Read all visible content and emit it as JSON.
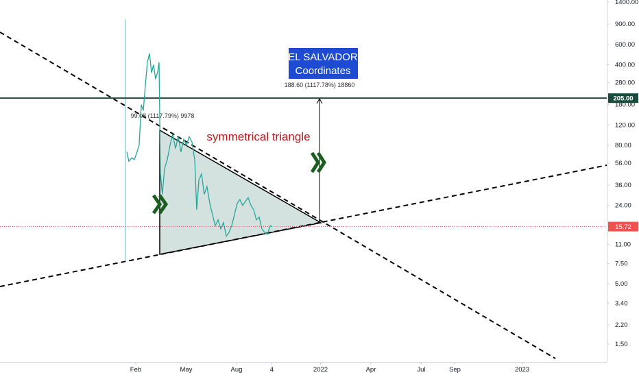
{
  "chart_data": {
    "type": "line",
    "log_y": true,
    "color": "#26a69a",
    "x": [
      0.47,
      0.59,
      0.76,
      0.92,
      1.08,
      1.2,
      1.33,
      1.45,
      1.57,
      1.69,
      1.82,
      1.94,
      2.06,
      2.18,
      2.31,
      2.39,
      2.47,
      2.59,
      2.71,
      2.88,
      3.04,
      3.2,
      3.37,
      3.53,
      3.69,
      3.86,
      4.02,
      4.18,
      4.35,
      4.51,
      4.63,
      4.76,
      4.92,
      5.08,
      5.24,
      5.41,
      5.57,
      5.73,
      5.9,
      6.06,
      6.22,
      6.39,
      6.55,
      6.71,
      6.88,
      7.04,
      7.2,
      7.37,
      7.53,
      7.69,
      7.86,
      8.02,
      8.18,
      8.35,
      8.51,
      8.67,
      8.84,
      9.0,
      9.12
    ],
    "values": [
      70,
      58,
      62,
      60,
      70,
      80,
      180,
      160,
      260,
      420,
      500,
      340,
      400,
      300,
      350,
      420,
      45,
      30,
      50,
      60,
      80,
      100,
      75,
      95,
      70,
      90,
      80,
      95,
      85,
      60,
      22,
      40,
      45,
      30,
      35,
      25,
      20,
      16,
      18,
      15,
      17,
      13,
      14,
      16,
      20,
      25,
      27,
      24,
      26,
      28,
      24,
      22,
      18,
      19,
      15,
      14,
      13.5,
      16,
      15.72
    ],
    "xlim": [
      -7.08,
      29.04
    ],
    "xticks": [
      {
        "value": 1,
        "label": "Feb"
      },
      {
        "value": 4,
        "label": "May"
      },
      {
        "value": 7,
        "label": "Aug"
      },
      {
        "value": 9.1,
        "label": "4"
      },
      {
        "value": 12,
        "label": "2022"
      },
      {
        "value": 15,
        "label": "Apr"
      },
      {
        "value": 18,
        "label": "Jul"
      },
      {
        "value": 20,
        "label": "Sep"
      },
      {
        "value": 24,
        "label": "2023"
      }
    ],
    "ylim": [
      1.05,
      1459
    ],
    "yticks": [
      {
        "value": 1400,
        "label": "1400.00"
      },
      {
        "value": 900,
        "label": "900.00"
      },
      {
        "value": 600,
        "label": "600.00"
      },
      {
        "value": 400,
        "label": "400.00"
      },
      {
        "value": 280,
        "label": "280.00"
      },
      {
        "value": 180,
        "label": "180.00"
      },
      {
        "value": 120,
        "label": "120.00"
      },
      {
        "value": 80,
        "label": "80.00"
      },
      {
        "value": 56,
        "label": "56.00"
      },
      {
        "value": 36,
        "label": "36.00"
      },
      {
        "value": 24,
        "label": "24.00"
      },
      {
        "value": 11,
        "label": "11.00"
      },
      {
        "value": 7.5,
        "label": "7.50"
      },
      {
        "value": 5,
        "label": "5.00"
      },
      {
        "value": 3.4,
        "label": "3.40"
      },
      {
        "value": 2.2,
        "label": "2.20"
      },
      {
        "value": 1.5,
        "label": "1.50"
      }
    ],
    "level": {
      "value": 205,
      "label": "205.00"
    },
    "last_price": {
      "value": 15.72,
      "label": "15.72"
    },
    "annotations": {
      "pattern": "symmetrical triangle",
      "box_line1": "EL SALVADOR",
      "box_line2": "Coordinates",
      "measure_top": "188.60 (1117.78%) 18860",
      "measure_left": "99.08 (1117.79%) 9978"
    }
  }
}
